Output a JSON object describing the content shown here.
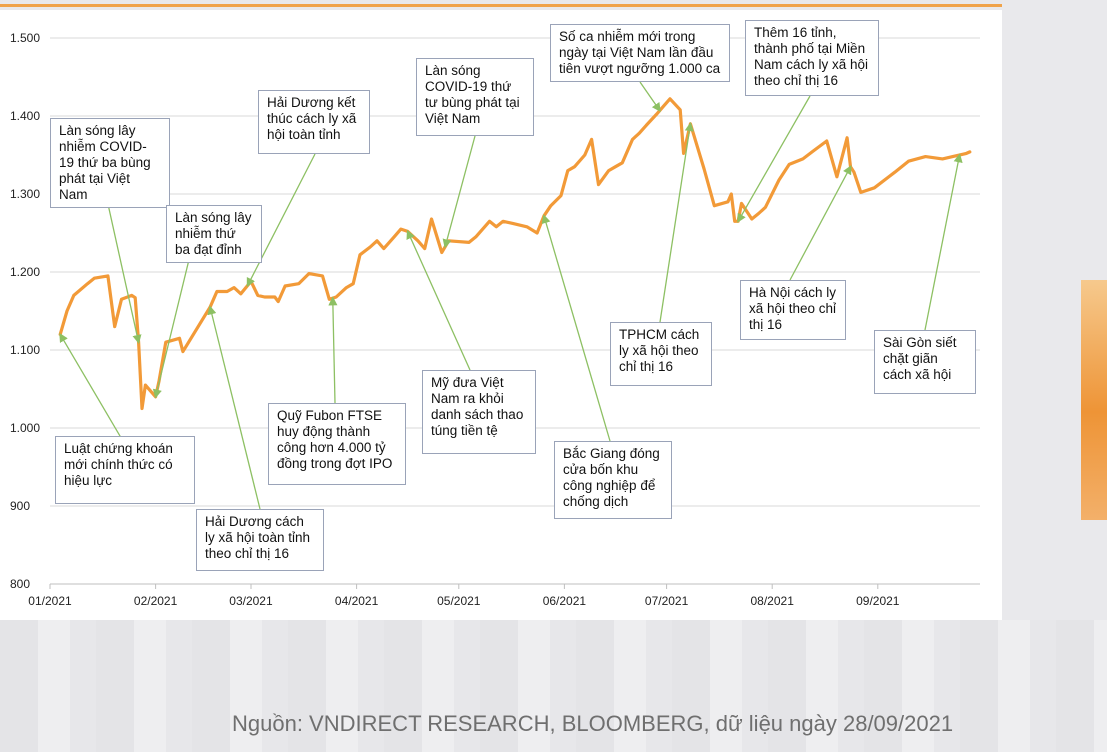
{
  "chart_data": {
    "type": "line",
    "title": "",
    "xlabel": "",
    "ylabel": "",
    "ylim": [
      800,
      1500
    ],
    "y_ticks": [
      "800",
      "900",
      "1.000",
      "1.100",
      "1.200",
      "1.300",
      "1.400",
      "1.500"
    ],
    "x_ticks": [
      "01/2021",
      "02/2021",
      "03/2021",
      "04/2021",
      "05/2021",
      "06/2021",
      "07/2021",
      "08/2021",
      "09/2021"
    ],
    "grid": "horizontal",
    "line_color": "#f29a38",
    "series": [
      {
        "x": [
          "2021-01-04",
          "2021-01-06",
          "2021-01-08",
          "2021-01-12",
          "2021-01-14",
          "2021-01-18",
          "2021-01-20",
          "2021-01-22",
          "2021-01-25",
          "2021-01-26",
          "2021-01-27",
          "2021-01-28",
          "2021-01-29",
          "2021-02-01",
          "2021-02-02",
          "2021-02-04",
          "2021-02-08",
          "2021-02-09",
          "2021-02-17",
          "2021-02-18",
          "2021-02-19",
          "2021-02-22",
          "2021-02-24",
          "2021-02-26",
          "2021-03-01",
          "2021-03-03",
          "2021-03-05",
          "2021-03-08",
          "2021-03-09",
          "2021-03-11",
          "2021-03-15",
          "2021-03-18",
          "2021-03-22",
          "2021-03-24",
          "2021-03-26",
          "2021-03-29",
          "2021-03-31",
          "2021-04-02",
          "2021-04-05",
          "2021-04-07",
          "2021-04-09",
          "2021-04-12",
          "2021-04-14",
          "2021-04-16",
          "2021-04-19",
          "2021-04-21",
          "2021-04-23",
          "2021-04-26",
          "2021-04-28",
          "2021-05-04",
          "2021-05-06",
          "2021-05-10",
          "2021-05-12",
          "2021-05-14",
          "2021-05-17",
          "2021-05-19",
          "2021-05-21",
          "2021-05-24",
          "2021-05-26",
          "2021-05-28",
          "2021-05-31",
          "2021-06-02",
          "2021-06-04",
          "2021-06-07",
          "2021-06-09",
          "2021-06-11",
          "2021-06-14",
          "2021-06-16",
          "2021-06-18",
          "2021-06-21",
          "2021-06-23",
          "2021-06-25",
          "2021-06-28",
          "2021-06-30",
          "2021-07-02",
          "2021-07-05",
          "2021-07-06",
          "2021-07-08",
          "2021-07-12",
          "2021-07-15",
          "2021-07-19",
          "2021-07-20",
          "2021-07-21",
          "2021-07-22",
          "2021-07-23",
          "2021-07-26",
          "2021-07-28",
          "2021-07-30",
          "2021-08-03",
          "2021-08-06",
          "2021-08-10",
          "2021-08-13",
          "2021-08-17",
          "2021-08-20",
          "2021-08-23",
          "2021-08-24",
          "2021-08-25",
          "2021-08-27",
          "2021-08-31",
          "2021-09-06",
          "2021-09-10",
          "2021-09-15",
          "2021-09-20",
          "2021-09-23",
          "2021-09-27",
          "2021-09-28"
        ],
        "values": [
          1120,
          1150,
          1170,
          1185,
          1192,
          1195,
          1130,
          1165,
          1170,
          1167,
          1110,
          1025,
          1055,
          1040,
          1060,
          1110,
          1115,
          1098,
          1155,
          1165,
          1175,
          1175,
          1180,
          1172,
          1188,
          1170,
          1168,
          1168,
          1162,
          1182,
          1185,
          1198,
          1195,
          1165,
          1168,
          1180,
          1185,
          1222,
          1232,
          1240,
          1230,
          1245,
          1255,
          1252,
          1240,
          1230,
          1268,
          1225,
          1240,
          1238,
          1245,
          1265,
          1258,
          1265,
          1262,
          1260,
          1258,
          1250,
          1272,
          1285,
          1298,
          1330,
          1335,
          1350,
          1370,
          1312,
          1330,
          1335,
          1340,
          1370,
          1378,
          1388,
          1402,
          1412,
          1422,
          1408,
          1352,
          1390,
          1332,
          1285,
          1290,
          1300,
          1265,
          1265,
          1288,
          1268,
          1275,
          1283,
          1318,
          1338,
          1345,
          1355,
          1368,
          1322,
          1372,
          1335,
          1328,
          1302,
          1308,
          1328,
          1342,
          1348,
          1345,
          1348,
          1352,
          1354
        ]
      }
    ],
    "annotations": [
      "Luật chứng khoán mới chính thức có hiệu lực",
      "Làn sóng lây nhiễm COVID-19 thứ ba bùng phát tại Việt Nam",
      "Làn sóng lây nhiễm thứ ba đạt đỉnh",
      "Hải Dương cách ly xã hội toàn tỉnh theo chỉ thị 16",
      "Hải Dương kết thúc cách ly xã hội toàn tỉnh",
      "Quỹ Fubon FTSE huy động thành công hơn 4.000 tỷ đồng trong đợt IPO",
      "Làn sóng COVID-19 thứ tư bùng phát tại Việt Nam",
      "Mỹ đưa Việt Nam ra khỏi danh sách thao túng tiền tệ",
      "Bắc Giang đóng cửa bốn khu công nghiệp để chống dịch",
      "Số ca nhiễm mới trong ngày tại Việt Nam lần đầu tiên vượt ngưỡng 1.000 ca",
      "TPHCM cách ly xã hội theo chỉ thị 16",
      "Thêm 16 tỉnh, thành phố tại Miền Nam cách ly xã hội theo chỉ thị 16",
      "Hà Nội cách ly xã hội theo chỉ thị 16",
      "Sài Gòn siết chặt giãn cách xã hội"
    ],
    "annotation_dates": [
      "2021-01-04",
      "2021-01-27",
      "2021-02-01",
      "2021-02-17",
      "2021-02-28",
      "2021-03-25",
      "2021-04-27",
      "2021-04-16",
      "2021-05-26",
      "2021-06-29",
      "2021-07-08",
      "2021-07-22",
      "2021-08-24",
      "2021-09-25"
    ]
  },
  "source_text": "Nguồn: VNDIRECT RESEARCH, BLOOMBERG, dữ liệu ngày 28/09/2021"
}
